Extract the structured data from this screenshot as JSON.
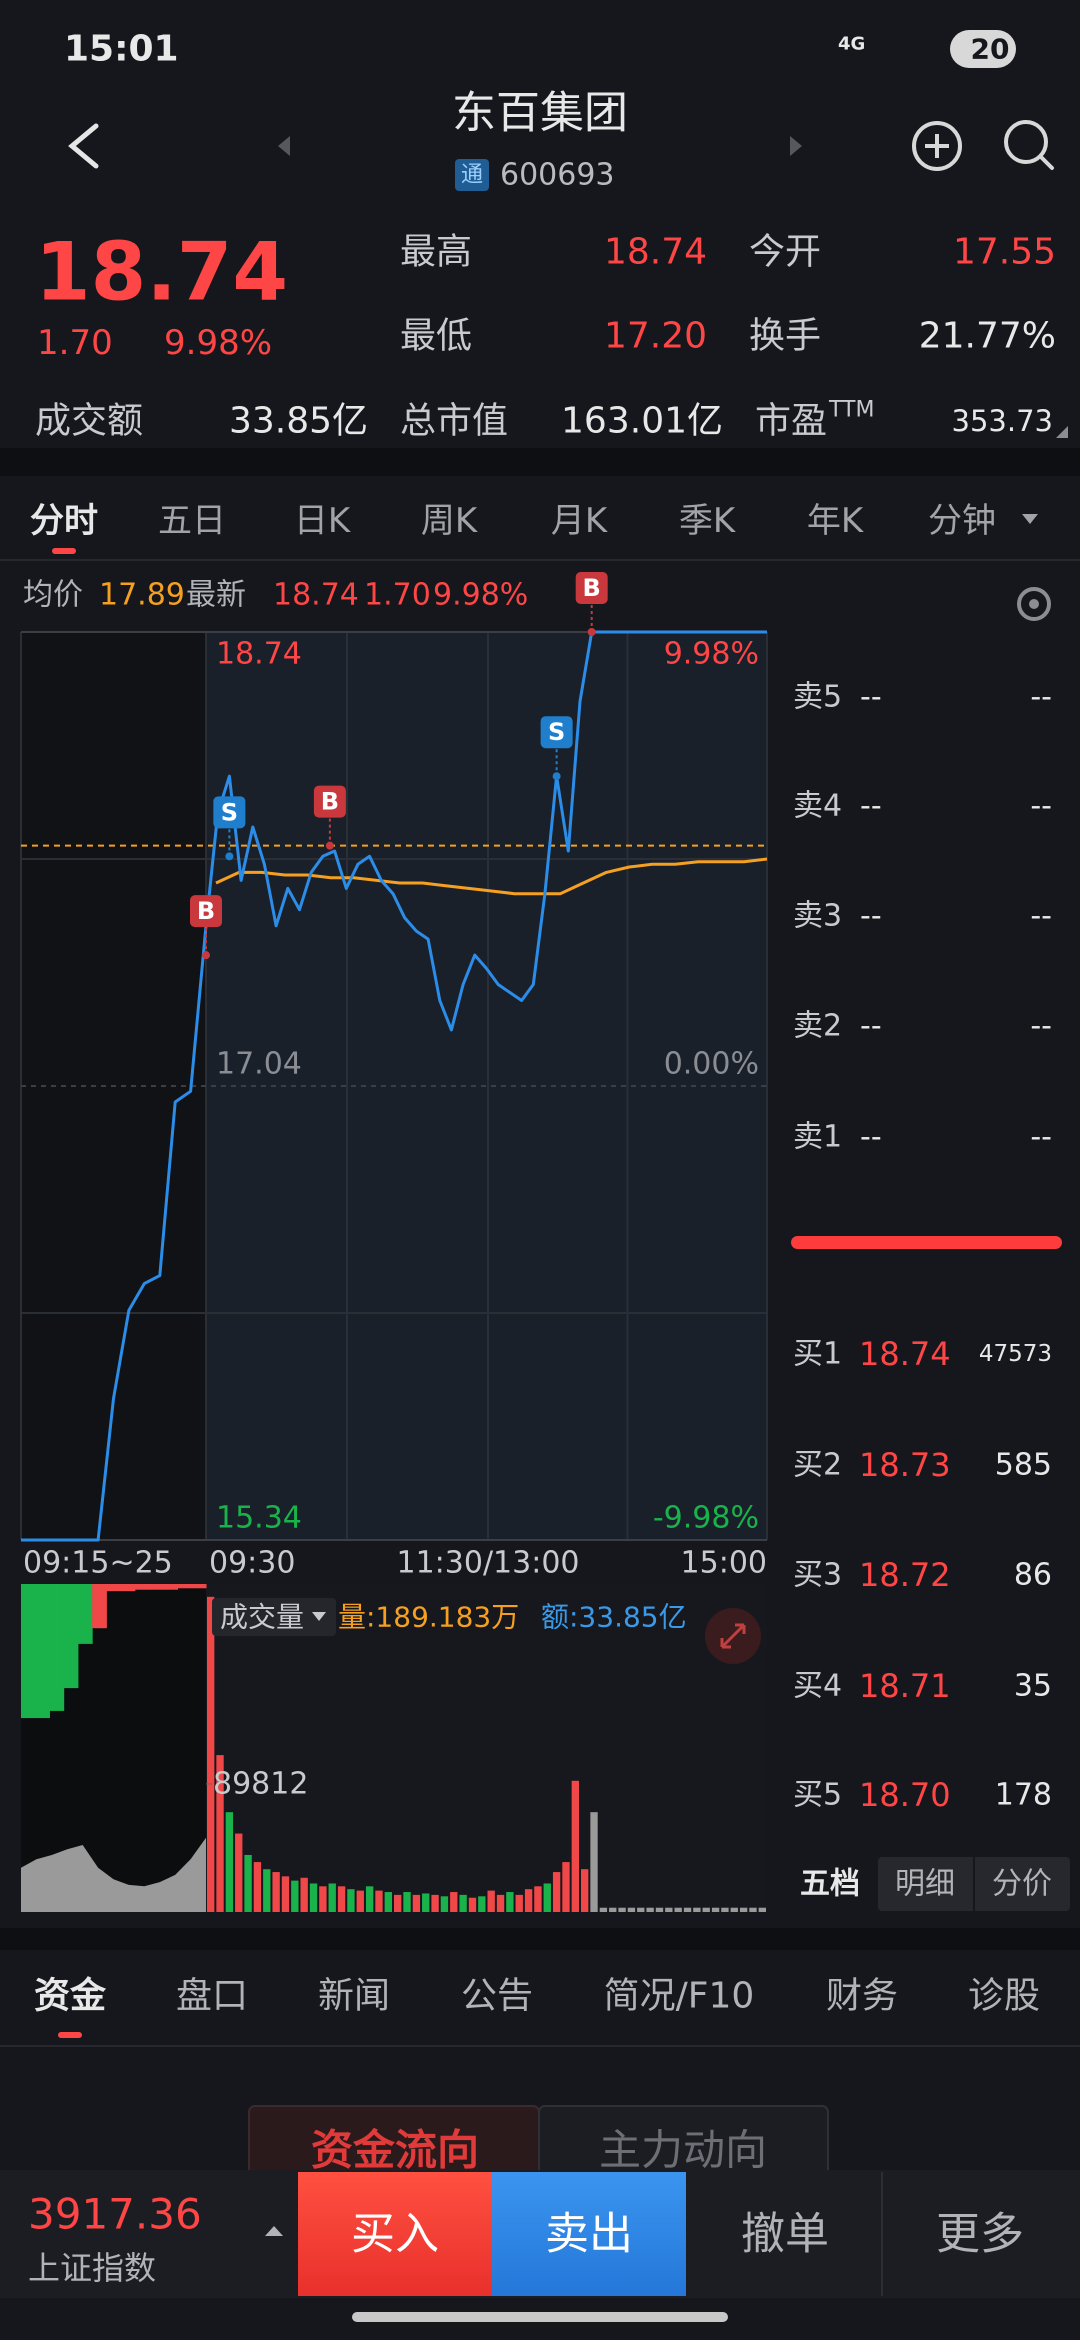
{
  "status_bar": {
    "time": "15:01",
    "network": "4G",
    "battery": "20"
  },
  "header": {
    "title": "东百集团",
    "badge": "通",
    "code": "600693"
  },
  "quote": {
    "price": "18.74",
    "change": "1.70",
    "change_pct": "9.98%",
    "stats": [
      [
        {
          "label": "最高",
          "value": "18.74"
        },
        {
          "label": "今开",
          "value": "17.55"
        }
      ],
      [
        {
          "label": "最低",
          "value": "17.20"
        },
        {
          "label": "换手",
          "value": "21.77%"
        }
      ]
    ],
    "summary": [
      {
        "label": "成交额",
        "value": "33.85亿"
      },
      {
        "label": "总市值",
        "value": "163.01亿"
      },
      {
        "label": "市盈",
        "sup": "TTM",
        "value": "353.73"
      }
    ]
  },
  "period_tabs": [
    "分时",
    "五日",
    "日K",
    "周K",
    "月K",
    "季K",
    "年K",
    "分钟"
  ],
  "info": {
    "avg_label": "均价",
    "avg": "17.89",
    "latest_label": "最新",
    "latest": "18.74",
    "change": "1.70",
    "change_pct": "9.98%"
  },
  "intraday": {
    "ylim": [
      15.34,
      18.74
    ],
    "yticks": [
      15.34,
      17.04,
      18.74
    ],
    "pct_ticks": [
      {
        "value": 15.34,
        "label": "-9.98%"
      },
      {
        "value": 17.04,
        "label": "0.00%"
      },
      {
        "value": 18.74,
        "label": "9.98%"
      }
    ],
    "xlabels": [
      "09:15~25",
      "09:30",
      "11:30/13:00",
      "15:00"
    ],
    "xlim": [
      0,
      240
    ],
    "reference_line": 17.94,
    "auction": {
      "color": "#2b8de8",
      "values": [
        15.34,
        15.34,
        15.34,
        15.34,
        15.34,
        15.34,
        15.87,
        16.2,
        16.3,
        16.33,
        16.98,
        17.02,
        17.64
      ]
    },
    "price": {
      "color": "#2b8de8",
      "values": [
        17.64,
        18.06,
        18.2,
        17.81,
        18.01,
        17.87,
        17.64,
        17.78,
        17.7,
        17.84,
        17.9,
        17.92,
        17.78,
        17.87,
        17.9,
        17.81,
        17.76,
        17.67,
        17.62,
        17.59,
        17.36,
        17.25,
        17.42,
        17.53,
        17.48,
        17.42,
        17.39,
        17.36,
        17.42,
        17.76,
        18.2,
        17.92,
        18.48,
        18.74,
        18.74,
        18.74,
        18.74,
        18.74,
        18.74,
        18.74,
        18.74,
        18.74,
        18.74,
        18.74,
        18.74,
        18.74,
        18.74,
        18.74,
        18.74
      ]
    },
    "average": {
      "color": "#f5a020",
      "values": [
        17.8,
        17.84,
        17.84,
        17.83,
        17.83,
        17.82,
        17.82,
        17.81,
        17.8,
        17.8,
        17.79,
        17.78,
        17.77,
        17.76,
        17.76,
        17.76,
        17.8,
        17.84,
        17.86,
        17.87,
        17.87,
        17.88,
        17.88,
        17.88,
        17.89
      ]
    },
    "trades": [
      {
        "label": "B",
        "minute": 0,
        "price": 17.53
      },
      {
        "label": "S",
        "minute": 10,
        "price": 17.9
      },
      {
        "label": "B",
        "minute": 53,
        "price": 17.94
      },
      {
        "label": "S",
        "minute": 150,
        "price": 18.2
      },
      {
        "label": "B",
        "minute": 165,
        "price": 18.74
      }
    ]
  },
  "volume": {
    "label": "成交量",
    "qty": "量:189.183万",
    "amount": "额:33.85亿",
    "vlim": [
      0,
      230000
    ],
    "ticks": [
      89812
    ],
    "auction": {
      "color": "#9a9a9a",
      "values": [
        31000,
        37000,
        40000,
        44000,
        47000,
        31000,
        23000,
        19000,
        18000,
        21000,
        26000,
        37000,
        52000
      ]
    },
    "auction_unmatched": {
      "values": [
        94000,
        94000,
        89000,
        73000,
        42000,
        31000,
        5000,
        5000,
        4000,
        4000,
        4000,
        3000,
        3000
      ],
      "colors": [
        "#19b24b",
        "#19b24b",
        "#19b24b",
        "#19b24b",
        "#19b24b",
        "#f04848",
        "#f04848",
        "#f04848",
        "#f04848",
        "#f04848",
        "#f04848",
        "#f04848",
        "#f04848"
      ]
    },
    "bars": {
      "values": [
        221000,
        110000,
        70000,
        55000,
        40000,
        35000,
        30000,
        28000,
        25000,
        22000,
        24000,
        20000,
        18000,
        20000,
        18000,
        16000,
        15000,
        18000,
        15000,
        14000,
        12000,
        14000,
        12000,
        13000,
        12000,
        11000,
        14000,
        12000,
        10000,
        11000,
        15000,
        12000,
        14000,
        12000,
        16000,
        18000,
        20000,
        28000,
        35000,
        92000,
        30000,
        70000,
        3000,
        3000,
        3000,
        3000,
        3000,
        3000,
        3000,
        3000,
        3000,
        3000,
        3000,
        3000,
        3000,
        3000,
        3000,
        3000,
        3000,
        3000
      ],
      "colors": [
        "#f04848",
        "#f04848",
        "#19b24b",
        "#f04848",
        "#19b24b",
        "#f04848",
        "#19b24b",
        "#f04848",
        "#f04848",
        "#19b24b",
        "#f04848",
        "#19b24b",
        "#f04848",
        "#19b24b",
        "#f04848",
        "#19b24b",
        "#f04848",
        "#19b24b",
        "#f04848",
        "#19b24b",
        "#f04848",
        "#19b24b",
        "#f04848",
        "#19b24b",
        "#f04848",
        "#19b24b",
        "#f04848",
        "#19b24b",
        "#f04848",
        "#19b24b",
        "#f04848",
        "#f04848",
        "#19b24b",
        "#f04848",
        "#f04848",
        "#f04848",
        "#19b24b",
        "#f04848",
        "#f04848",
        "#f04848",
        "#f04848",
        "#9a9a9a",
        "#9a9a9a",
        "#9a9a9a",
        "#9a9a9a",
        "#9a9a9a",
        "#9a9a9a",
        "#9a9a9a",
        "#9a9a9a",
        "#9a9a9a",
        "#9a9a9a",
        "#9a9a9a",
        "#9a9a9a",
        "#9a9a9a",
        "#9a9a9a",
        "#9a9a9a",
        "#9a9a9a",
        "#9a9a9a",
        "#9a9a9a",
        "#9a9a9a"
      ]
    }
  },
  "order_book": {
    "asks": [
      {
        "label": "卖5",
        "price": "--",
        "volume": "--"
      },
      {
        "label": "卖4",
        "price": "--",
        "volume": "--"
      },
      {
        "label": "卖3",
        "price": "--",
        "volume": "--"
      },
      {
        "label": "卖2",
        "price": "--",
        "volume": "--"
      },
      {
        "label": "卖1",
        "price": "--",
        "volume": "--"
      }
    ],
    "bids": [
      {
        "label": "买1",
        "price": "18.74",
        "volume": "47573"
      },
      {
        "label": "买2",
        "price": "18.73",
        "volume": "585"
      },
      {
        "label": "买3",
        "price": "18.72",
        "volume": "86"
      },
      {
        "label": "买4",
        "price": "18.71",
        "volume": "35"
      },
      {
        "label": "买5",
        "price": "18.70",
        "volume": "178"
      }
    ],
    "tabs": [
      "五档",
      "明细",
      "分价"
    ]
  },
  "info_tabs": [
    "资金",
    "盘口",
    "新闻",
    "公告",
    "简况/F10",
    "财务",
    "诊股"
  ],
  "fund_tabs": [
    "资金流向",
    "主力动向"
  ],
  "bottom_bar": {
    "index_value": "3917.36",
    "index_name": "上证指数",
    "buttons": [
      "买入",
      "卖出",
      "撤单",
      "更多"
    ]
  }
}
